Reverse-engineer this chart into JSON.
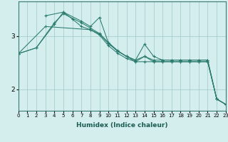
{
  "xlabel": "Humidex (Indice chaleur)",
  "bg_color": "#d4eeed",
  "line_color": "#2a7b6e",
  "xlim": [
    0,
    23
  ],
  "ylim": [
    1.6,
    3.65
  ],
  "xticks": [
    0,
    1,
    2,
    3,
    4,
    5,
    6,
    7,
    8,
    9,
    10,
    11,
    12,
    13,
    14,
    15,
    16,
    17,
    18,
    19,
    20,
    21,
    22,
    23
  ],
  "yticks": [
    2,
    3
  ],
  "series": [
    {
      "x": [
        0,
        3,
        8,
        9,
        10,
        11,
        12,
        13,
        14,
        15,
        16,
        17,
        18,
        19,
        20,
        21,
        22,
        23
      ],
      "y": [
        2.67,
        3.18,
        3.12,
        3.02,
        2.82,
        2.68,
        2.58,
        2.52,
        2.52,
        2.52,
        2.52,
        2.52,
        2.52,
        2.52,
        2.52,
        2.52,
        1.82,
        1.72
      ]
    },
    {
      "x": [
        0,
        2,
        4,
        5,
        7,
        8,
        9,
        10,
        11,
        12,
        13,
        14,
        15,
        16,
        17,
        18,
        19,
        20,
        21,
        22,
        23
      ],
      "y": [
        2.67,
        2.78,
        3.25,
        3.42,
        3.25,
        3.15,
        3.05,
        2.88,
        2.73,
        2.62,
        2.55,
        2.85,
        2.62,
        2.55,
        2.55,
        2.55,
        2.55,
        2.55,
        2.55,
        1.82,
        1.72
      ]
    },
    {
      "x": [
        0,
        2,
        4,
        5,
        6,
        7,
        8,
        9,
        10,
        11,
        12,
        13,
        14,
        15,
        16,
        17,
        18,
        19,
        20,
        21,
        22,
        23
      ],
      "y": [
        2.67,
        2.78,
        3.22,
        3.45,
        3.32,
        3.18,
        3.12,
        3.04,
        2.86,
        2.72,
        2.62,
        2.52,
        2.62,
        2.52,
        2.52,
        2.52,
        2.52,
        2.52,
        2.52,
        2.52,
        1.82,
        1.72
      ]
    },
    {
      "x": [
        3,
        5,
        7,
        8,
        9,
        10,
        11,
        12,
        13,
        14,
        15,
        16,
        17,
        18,
        19,
        20,
        21,
        22,
        23
      ],
      "y": [
        3.38,
        3.45,
        3.28,
        3.18,
        3.35,
        2.87,
        2.72,
        2.62,
        2.55,
        2.62,
        2.55,
        2.55,
        2.55,
        2.55,
        2.55,
        2.55,
        2.55,
        1.82,
        1.72
      ]
    }
  ]
}
